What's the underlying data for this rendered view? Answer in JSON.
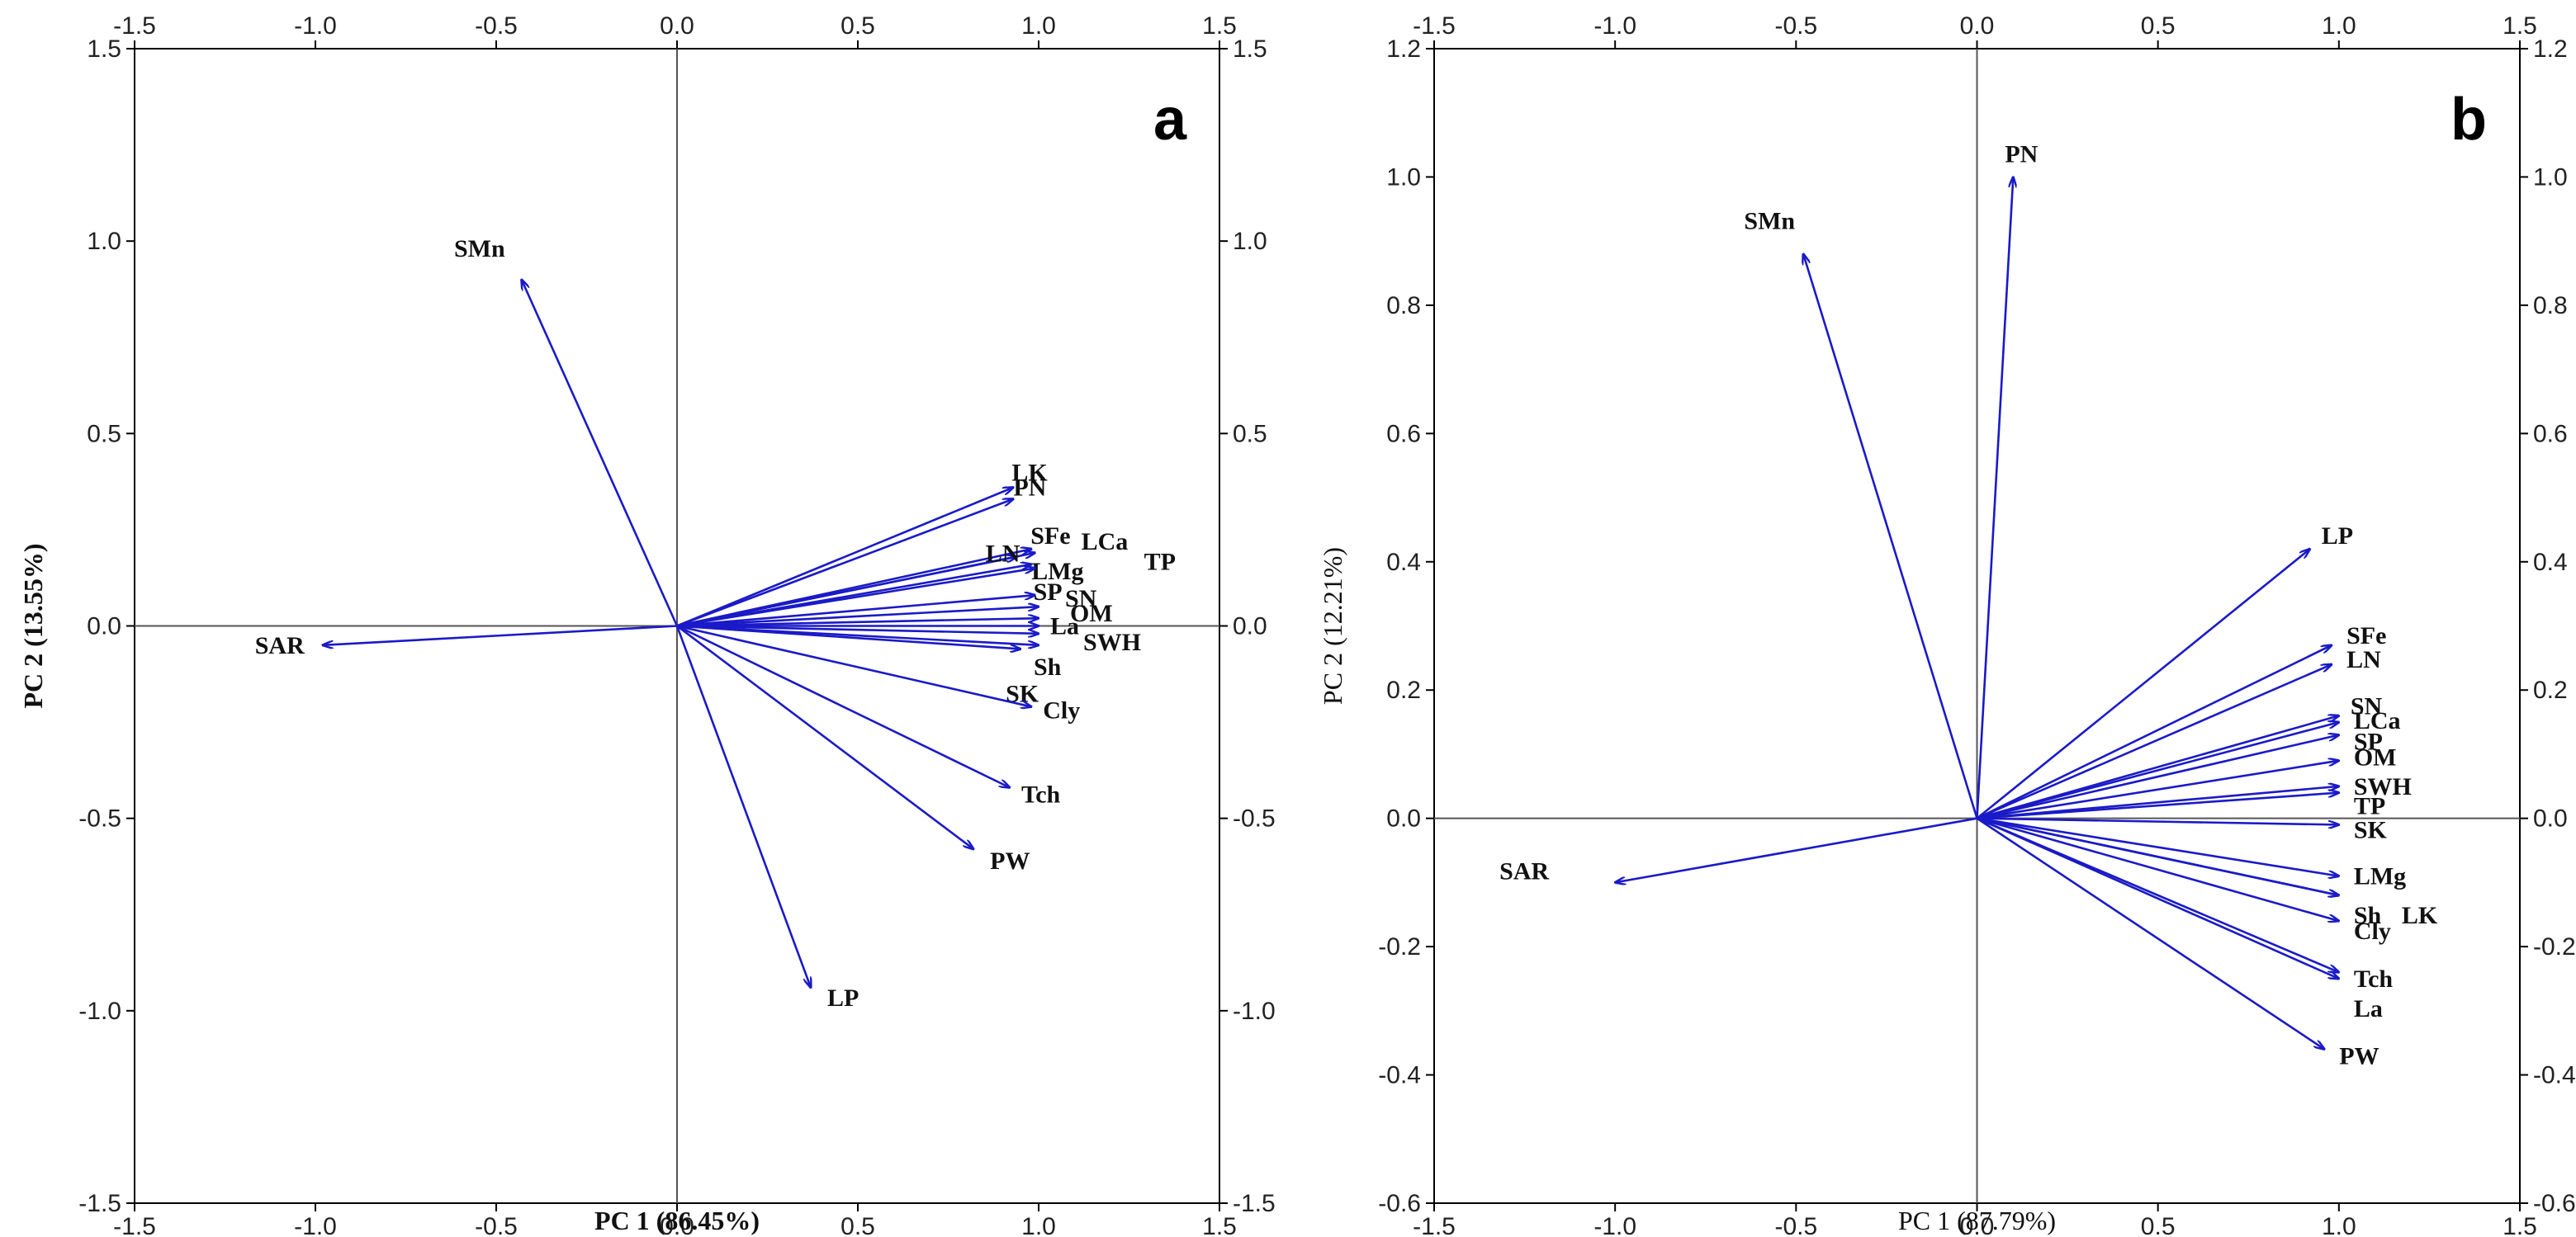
{
  "chart_data": [
    {
      "type": "scatter",
      "subtype": "pca-biplot-vectors",
      "panel_label": "a",
      "xlabel": "PC 1 (86.45%)",
      "ylabel": "PC 2 (13.55%)",
      "xlim": [
        -1.5,
        1.5
      ],
      "ylim": [
        -1.5,
        1.5
      ],
      "xticks": [
        "-1.5",
        "-1.0",
        "-0.5",
        "0.0",
        "0.5",
        "1.0",
        "1.5"
      ],
      "yticks": [
        "-1.5",
        "-1.0",
        "-0.5",
        "0.0",
        "0.5",
        "1.0",
        "1.5"
      ],
      "vectors": [
        {
          "name": "SMn",
          "x": -0.43,
          "y": 0.9
        },
        {
          "name": "SAR",
          "x": -0.98,
          "y": -0.05
        },
        {
          "name": "LK",
          "x": 0.93,
          "y": 0.36
        },
        {
          "name": "PN",
          "x": 0.93,
          "y": 0.33
        },
        {
          "name": "SFe",
          "x": 0.98,
          "y": 0.2
        },
        {
          "name": "LCa",
          "x": 0.99,
          "y": 0.19
        },
        {
          "name": "LN",
          "x": 0.94,
          "y": 0.18
        },
        {
          "name": "LMg",
          "x": 0.98,
          "y": 0.16
        },
        {
          "name": "TP",
          "x": 0.99,
          "y": 0.15
        },
        {
          "name": "SP",
          "x": 0.99,
          "y": 0.08
        },
        {
          "name": "SN",
          "x": 1.0,
          "y": 0.05
        },
        {
          "name": "OM",
          "x": 1.0,
          "y": 0.02
        },
        {
          "name": "La",
          "x": 1.0,
          "y": 0.0
        },
        {
          "name": "SWH",
          "x": 1.0,
          "y": -0.02
        },
        {
          "name": "Sh",
          "x": 1.0,
          "y": -0.05
        },
        {
          "name": "SK",
          "x": 0.95,
          "y": -0.06
        },
        {
          "name": "Cly",
          "x": 0.98,
          "y": -0.21
        },
        {
          "name": "Tch",
          "x": 0.92,
          "y": -0.42
        },
        {
          "name": "PW",
          "x": 0.82,
          "y": -0.58
        },
        {
          "name": "LP",
          "x": 0.37,
          "y": -0.94
        }
      ]
    },
    {
      "type": "scatter",
      "subtype": "pca-biplot-vectors",
      "panel_label": "b",
      "xlabel": "PC 1 (87.79%)",
      "ylabel": "PC 2 (12.21%)",
      "xlim": [
        -1.5,
        1.5
      ],
      "ylim": [
        -0.6,
        1.2
      ],
      "xticks": [
        "-1.5",
        "-1.0",
        "-0.5",
        "0.0",
        "0.5",
        "1.0",
        "1.5"
      ],
      "yticks": [
        "-0.6",
        "-0.4",
        "-0.2",
        "0.0",
        "0.2",
        "0.4",
        "0.6",
        "0.8",
        "1.0",
        "1.2"
      ],
      "vectors": [
        {
          "name": "PN",
          "x": 0.1,
          "y": 1.0
        },
        {
          "name": "SMn",
          "x": -0.48,
          "y": 0.88
        },
        {
          "name": "LP",
          "x": 0.92,
          "y": 0.42
        },
        {
          "name": "SFe",
          "x": 0.98,
          "y": 0.27
        },
        {
          "name": "LN",
          "x": 0.98,
          "y": 0.24
        },
        {
          "name": "SN",
          "x": 1.0,
          "y": 0.16
        },
        {
          "name": "LCa",
          "x": 1.0,
          "y": 0.15
        },
        {
          "name": "SP",
          "x": 1.0,
          "y": 0.13
        },
        {
          "name": "OM",
          "x": 1.0,
          "y": 0.09
        },
        {
          "name": "SWH",
          "x": 1.0,
          "y": 0.05
        },
        {
          "name": "TP",
          "x": 1.0,
          "y": 0.04
        },
        {
          "name": "SK",
          "x": 1.0,
          "y": -0.01
        },
        {
          "name": "LMg",
          "x": 1.0,
          "y": -0.09
        },
        {
          "name": "Sh",
          "x": 1.0,
          "y": -0.12
        },
        {
          "name": "LK",
          "x": 1.0,
          "y": -0.12
        },
        {
          "name": "Cly",
          "x": 1.0,
          "y": -0.16
        },
        {
          "name": "Tch",
          "x": 1.0,
          "y": -0.24
        },
        {
          "name": "La",
          "x": 1.0,
          "y": -0.25
        },
        {
          "name": "PW",
          "x": 0.96,
          "y": -0.36
        },
        {
          "name": "SAR",
          "x": -1.0,
          "y": -0.1
        }
      ]
    }
  ]
}
